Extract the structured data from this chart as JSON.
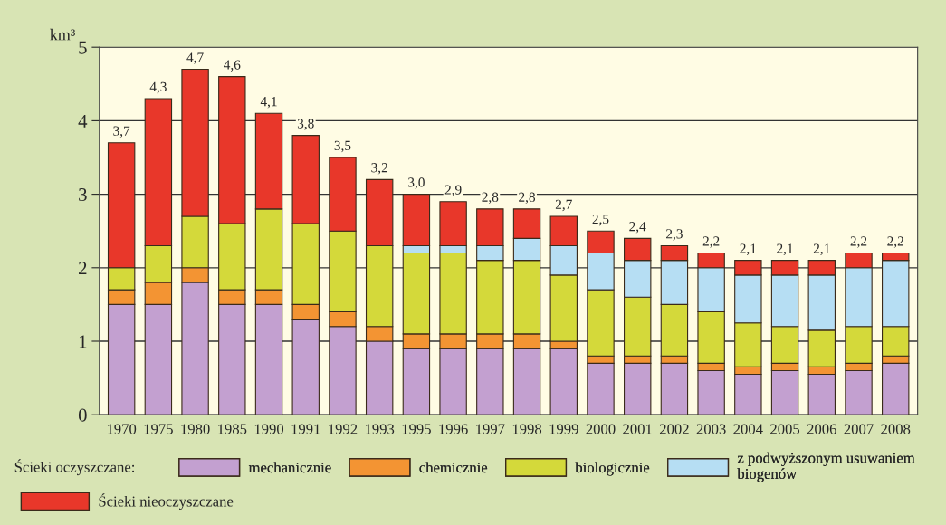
{
  "chart_data": {
    "type": "bar",
    "stacked": true,
    "ylabel": "km³",
    "legend_title": "Ścieki oczyszczane:",
    "categories": [
      "1970",
      "1975",
      "1980",
      "1985",
      "1990",
      "1991",
      "1992",
      "1993",
      "1995",
      "1996",
      "1997",
      "1998",
      "1999",
      "2000",
      "2001",
      "2002",
      "2003",
      "2004",
      "2005",
      "2006",
      "2007",
      "2008"
    ],
    "series": [
      {
        "name": "mechanicznie",
        "color": "#c3a0d0",
        "values": [
          1.5,
          1.5,
          1.8,
          1.5,
          1.5,
          1.3,
          1.2,
          1.0,
          0.9,
          0.9,
          0.9,
          0.9,
          0.9,
          0.7,
          0.7,
          0.7,
          0.6,
          0.55,
          0.6,
          0.55,
          0.6,
          0.7
        ]
      },
      {
        "name": "chemicznie",
        "color": "#f39433",
        "values": [
          0.2,
          0.3,
          0.2,
          0.2,
          0.2,
          0.2,
          0.2,
          0.2,
          0.2,
          0.2,
          0.2,
          0.2,
          0.1,
          0.1,
          0.1,
          0.1,
          0.1,
          0.1,
          0.1,
          0.1,
          0.1,
          0.1
        ]
      },
      {
        "name": "biologicznie",
        "color": "#d4d93a",
        "values": [
          0.3,
          0.5,
          0.7,
          0.9,
          1.1,
          1.1,
          1.1,
          1.1,
          1.1,
          1.1,
          1.0,
          1.0,
          0.9,
          0.9,
          0.8,
          0.7,
          0.7,
          0.6,
          0.5,
          0.5,
          0.5,
          0.4
        ]
      },
      {
        "name": "z podwyższonym usuwaniem\nbiogenów",
        "color": "#b6def3",
        "values": [
          null,
          null,
          null,
          null,
          null,
          null,
          null,
          null,
          0.1,
          0.1,
          0.2,
          0.3,
          0.4,
          0.5,
          0.5,
          0.6,
          0.6,
          0.65,
          0.7,
          0.75,
          0.8,
          0.9
        ]
      },
      {
        "name": "Ścieki nieoczyszczane",
        "color": "#e8372a",
        "values": [
          1.7,
          2.0,
          2.0,
          2.0,
          1.3,
          1.2,
          1.0,
          0.9,
          0.7,
          0.6,
          0.5,
          0.4,
          0.4,
          0.3,
          0.3,
          0.2,
          0.2,
          0.2,
          0.2,
          0.2,
          0.2,
          0.1
        ]
      }
    ],
    "totals": [
      "3,7",
      "4,3",
      "4,7",
      "4,6",
      "4,1",
      "3,8",
      "3,5",
      "3,2",
      "3,0",
      "2,9",
      "2,8",
      "2,8",
      "2,7",
      "2,5",
      "2,4",
      "2,3",
      "2,2",
      "2,1",
      "2,1",
      "2,1",
      "2,2",
      "2,2"
    ],
    "ylim": [
      0,
      5
    ],
    "yticks": [
      0,
      1,
      2,
      3,
      4,
      5
    ],
    "grid": "y",
    "legend": "bottom"
  }
}
